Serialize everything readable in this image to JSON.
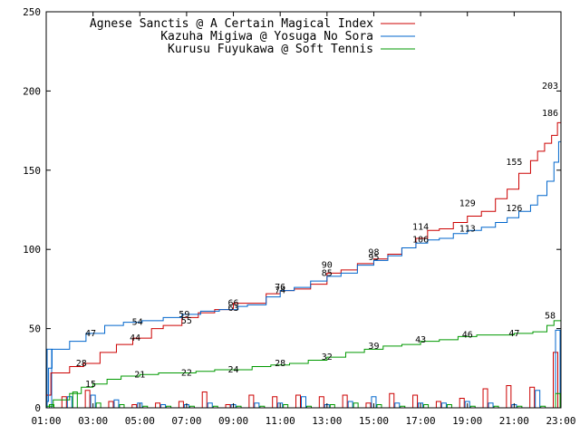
{
  "chart_data": {
    "type": "line",
    "title": "",
    "xlabel": "",
    "ylabel": "",
    "xlim": [
      1,
      23
    ],
    "ylim": [
      0,
      250
    ],
    "x_ticks": [
      "01:00",
      "03:00",
      "05:00",
      "07:00",
      "09:00",
      "11:00",
      "13:00",
      "15:00",
      "17:00",
      "19:00",
      "21:00",
      "23:00"
    ],
    "y_ticks": [
      "0",
      "50",
      "100",
      "150",
      "200",
      "250"
    ],
    "grid": false,
    "legend_position": "top-left",
    "series": [
      {
        "name": "Agnese Sanctis @ A Certain Magical Index",
        "color": "#cc0000",
        "cumulative": [
          [
            1.0,
            8
          ],
          [
            1.2,
            22
          ],
          [
            2.0,
            26
          ],
          [
            2.6,
            28
          ],
          [
            3.3,
            35
          ],
          [
            4.0,
            40
          ],
          [
            4.7,
            44
          ],
          [
            5.5,
            50
          ],
          [
            6.0,
            52
          ],
          [
            6.8,
            57
          ],
          [
            7.5,
            60
          ],
          [
            8.2,
            62
          ],
          [
            9.0,
            66
          ],
          [
            9.6,
            66
          ],
          [
            10.4,
            72
          ],
          [
            11.0,
            74
          ],
          [
            11.6,
            75
          ],
          [
            12.3,
            78
          ],
          [
            13.0,
            85
          ],
          [
            13.6,
            87
          ],
          [
            14.3,
            91
          ],
          [
            15.0,
            94
          ],
          [
            15.6,
            97
          ],
          [
            16.2,
            101
          ],
          [
            16.8,
            107
          ],
          [
            17.3,
            112
          ],
          [
            17.8,
            113
          ],
          [
            18.4,
            117
          ],
          [
            19.0,
            121
          ],
          [
            19.6,
            124
          ],
          [
            20.2,
            132
          ],
          [
            20.7,
            138
          ],
          [
            21.2,
            148
          ],
          [
            21.7,
            156
          ],
          [
            22.0,
            162
          ],
          [
            22.3,
            167
          ],
          [
            22.6,
            172
          ],
          [
            22.85,
            180
          ],
          [
            23.0,
            203
          ]
        ],
        "hourly": [
          [
            1,
            8
          ],
          [
            2,
            7
          ],
          [
            3,
            11
          ],
          [
            4,
            4
          ],
          [
            5,
            2
          ],
          [
            6,
            3
          ],
          [
            7,
            4
          ],
          [
            8,
            10
          ],
          [
            9,
            2
          ],
          [
            10,
            8
          ],
          [
            11,
            7
          ],
          [
            12,
            8
          ],
          [
            13,
            7
          ],
          [
            14,
            8
          ],
          [
            15,
            3
          ],
          [
            16,
            9
          ],
          [
            17,
            8
          ],
          [
            18,
            4
          ],
          [
            19,
            6
          ],
          [
            20,
            12
          ],
          [
            21,
            14
          ],
          [
            22,
            13
          ],
          [
            23,
            35
          ]
        ],
        "data_labels": [
          [
            2.5,
            28,
            "28"
          ],
          [
            4.8,
            44,
            "44"
          ],
          [
            7.0,
            55,
            "55"
          ],
          [
            9.0,
            66,
            "66"
          ],
          [
            11.0,
            74,
            "74"
          ],
          [
            13.0,
            90,
            "90"
          ],
          [
            15.0,
            98,
            "98"
          ],
          [
            17.0,
            114,
            "114"
          ],
          [
            19.0,
            129,
            "129"
          ],
          [
            21.0,
            155,
            "155"
          ],
          [
            23.0,
            186,
            "186"
          ],
          [
            23.0,
            203,
            "203"
          ]
        ]
      },
      {
        "name": "Kazuha Migiwa @ Yosuga No Sora",
        "color": "#0066cc",
        "cumulative": [
          [
            1.0,
            4
          ],
          [
            1.1,
            25
          ],
          [
            1.25,
            37
          ],
          [
            2.0,
            42
          ],
          [
            2.7,
            47
          ],
          [
            3.5,
            52
          ],
          [
            4.3,
            54
          ],
          [
            5.1,
            55
          ],
          [
            6.0,
            57
          ],
          [
            6.8,
            59
          ],
          [
            7.6,
            61
          ],
          [
            8.4,
            62
          ],
          [
            9.2,
            64
          ],
          [
            9.6,
            65
          ],
          [
            10.4,
            70
          ],
          [
            11.0,
            74
          ],
          [
            11.6,
            76
          ],
          [
            12.3,
            80
          ],
          [
            13.0,
            83
          ],
          [
            13.6,
            85
          ],
          [
            14.3,
            90
          ],
          [
            15.0,
            93
          ],
          [
            15.6,
            96
          ],
          [
            16.2,
            101
          ],
          [
            16.8,
            104
          ],
          [
            17.3,
            106
          ],
          [
            17.8,
            107
          ],
          [
            18.4,
            110
          ],
          [
            19.0,
            112
          ],
          [
            19.6,
            114
          ],
          [
            20.2,
            117
          ],
          [
            20.7,
            120
          ],
          [
            21.2,
            124
          ],
          [
            21.7,
            128
          ],
          [
            22.0,
            134
          ],
          [
            22.4,
            143
          ],
          [
            22.7,
            155
          ],
          [
            22.9,
            168
          ],
          [
            23.0,
            186
          ]
        ],
        "hourly": [
          [
            1,
            37
          ],
          [
            2,
            7
          ],
          [
            3,
            8
          ],
          [
            4,
            5
          ],
          [
            5,
            3
          ],
          [
            6,
            2
          ],
          [
            7,
            2
          ],
          [
            8,
            3
          ],
          [
            9,
            2
          ],
          [
            10,
            3
          ],
          [
            11,
            3
          ],
          [
            12,
            7
          ],
          [
            13,
            2
          ],
          [
            14,
            4
          ],
          [
            15,
            7
          ],
          [
            16,
            3
          ],
          [
            17,
            3
          ],
          [
            18,
            3
          ],
          [
            19,
            4
          ],
          [
            20,
            3
          ],
          [
            21,
            2
          ],
          [
            22,
            11
          ],
          [
            23,
            49
          ]
        ],
        "data_labels": [
          [
            2.9,
            47,
            "47"
          ],
          [
            4.9,
            54,
            "54"
          ],
          [
            6.9,
            59,
            "59"
          ],
          [
            9.0,
            63,
            "63"
          ],
          [
            11.0,
            76,
            "76"
          ],
          [
            13.0,
            85,
            "85"
          ],
          [
            15.0,
            95,
            "95"
          ],
          [
            17.0,
            106,
            "106"
          ],
          [
            19.0,
            113,
            "113"
          ],
          [
            21.0,
            126,
            "126"
          ]
        ]
      },
      {
        "name": "Kurusu Fuyukawa @ Soft Tennis",
        "color": "#009900",
        "cumulative": [
          [
            1.0,
            1
          ],
          [
            1.3,
            5
          ],
          [
            2.0,
            9
          ],
          [
            2.5,
            13
          ],
          [
            3.0,
            15
          ],
          [
            3.6,
            18
          ],
          [
            4.2,
            20
          ],
          [
            5.0,
            21
          ],
          [
            5.8,
            22
          ],
          [
            6.6,
            22
          ],
          [
            7.4,
            23
          ],
          [
            8.2,
            24
          ],
          [
            9.0,
            24
          ],
          [
            9.8,
            26
          ],
          [
            10.6,
            27
          ],
          [
            11.4,
            28
          ],
          [
            12.2,
            30
          ],
          [
            13.0,
            32
          ],
          [
            13.8,
            35
          ],
          [
            14.6,
            37
          ],
          [
            15.4,
            39
          ],
          [
            16.2,
            40
          ],
          [
            17.0,
            42
          ],
          [
            17.8,
            43
          ],
          [
            18.6,
            45
          ],
          [
            19.4,
            46
          ],
          [
            20.2,
            46
          ],
          [
            21.0,
            47
          ],
          [
            21.8,
            48
          ],
          [
            22.4,
            52
          ],
          [
            22.7,
            55
          ],
          [
            23.0,
            58
          ]
        ],
        "hourly": [
          [
            1,
            2
          ],
          [
            2,
            10
          ],
          [
            3,
            3
          ],
          [
            4,
            2
          ],
          [
            5,
            1
          ],
          [
            6,
            1
          ],
          [
            7,
            1
          ],
          [
            8,
            1
          ],
          [
            9,
            1
          ],
          [
            10,
            1
          ],
          [
            11,
            2
          ],
          [
            12,
            1
          ],
          [
            13,
            2
          ],
          [
            14,
            3
          ],
          [
            15,
            2
          ],
          [
            16,
            1
          ],
          [
            17,
            2
          ],
          [
            18,
            2
          ],
          [
            19,
            1
          ],
          [
            20,
            1
          ],
          [
            21,
            1
          ],
          [
            22,
            1
          ],
          [
            23,
            9
          ]
        ],
        "data_labels": [
          [
            2.9,
            15,
            "15"
          ],
          [
            5.0,
            21,
            "21"
          ],
          [
            7.0,
            22,
            "22"
          ],
          [
            9.0,
            24,
            "24"
          ],
          [
            11.0,
            28,
            "28"
          ],
          [
            13.0,
            32,
            "32"
          ],
          [
            15.0,
            39,
            "39"
          ],
          [
            17.0,
            43,
            "43"
          ],
          [
            19.0,
            46,
            "46"
          ],
          [
            21.0,
            47,
            "47"
          ],
          [
            23.0,
            58,
            "58"
          ]
        ]
      }
    ]
  }
}
